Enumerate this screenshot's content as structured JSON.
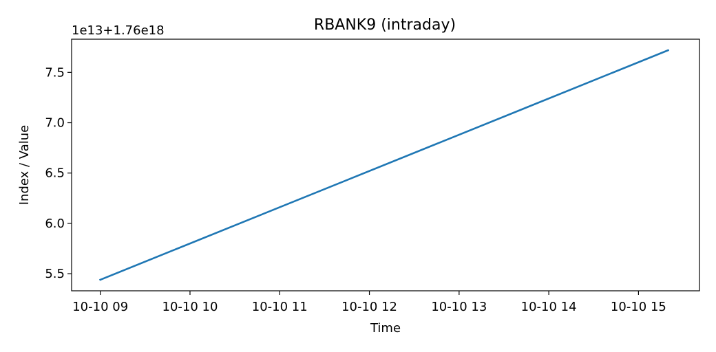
{
  "chart_data": {
    "type": "line",
    "title": "RBANK9 (intraday)",
    "xlabel": "Time",
    "ylabel": "Index / Value",
    "y_offset_label": "1e13+1.76e18",
    "x_ticks": [
      "10-10 09",
      "10-10 10",
      "10-10 11",
      "10-10 12",
      "10-10 13",
      "10-10 14",
      "10-10 15"
    ],
    "y_ticks": [
      "5.5",
      "6.0",
      "6.5",
      "7.0",
      "7.5"
    ],
    "x_unit": "hours since 10-10 00:00",
    "x_tick_values": [
      9,
      10,
      11,
      12,
      13,
      14,
      15
    ],
    "y_tick_values": [
      5.5,
      6.0,
      6.5,
      7.0,
      7.5
    ],
    "xlim": [
      8.68,
      15.68
    ],
    "ylim": [
      5.33,
      7.83
    ],
    "grid": false,
    "series": [
      {
        "color": "#1f77b4",
        "x": [
          9.0,
          15.33
        ],
        "y": [
          5.44,
          7.72
        ]
      }
    ]
  }
}
